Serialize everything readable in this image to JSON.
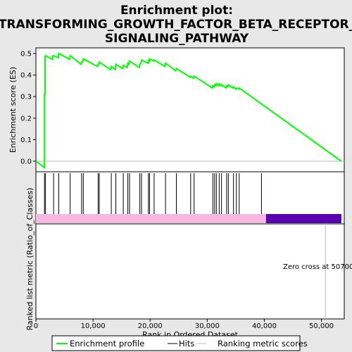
{
  "title_lines": [
    "Enrichment plot:",
    "TRANSFORMING_GROWTH_FACTOR_BETA_RECEPTOR_",
    "SIGNALING_PATHWAY"
  ],
  "colors": {
    "background": "#e8e8e8",
    "profile": "#00ff00",
    "hits": "#000000",
    "positive_band": "#f5b8e0",
    "negative_band": "#5a00b0",
    "zero_line": "#bbbbbb"
  },
  "chart_data": {
    "type": "line",
    "ylabel": "Enrichment score (ES)",
    "xlabel": "Rank in Ordered Dataset",
    "ylabel_bottom": "Ranked list metric (Ratio_of_Classes)",
    "xlim": [
      0,
      54000
    ],
    "ylim": [
      -0.05,
      0.52
    ],
    "yticks": [
      0.0,
      0.1,
      0.2,
      0.3,
      0.4,
      0.5
    ],
    "ytick_labels": [
      "0.0",
      "0.1",
      "0.2",
      "0.3",
      "0.4",
      "0.5"
    ],
    "xticks": [
      0,
      10000,
      20000,
      30000,
      40000,
      50000
    ],
    "xtick_labels": [
      "0",
      "10,000",
      "20,000",
      "30,000",
      "40,000",
      "50,000"
    ],
    "zero_cross_label": "Zero cross at 50700",
    "zero_cross_x": 50700,
    "dataset_end": 53500,
    "positive_end": 40300,
    "legend": [
      "Enrichment profile",
      "Hits",
      "Ranking metric scores"
    ],
    "hits": [
      1500,
      1650,
      3100,
      4000,
      6000,
      8000,
      8300,
      10900,
      11100,
      13200,
      14000,
      15300,
      16100,
      16400,
      18200,
      18500,
      19700,
      19900,
      20700,
      22700,
      24600,
      27100,
      27700,
      31000,
      31300,
      31600,
      32100,
      32500,
      33400,
      33700,
      34600,
      35100,
      35600,
      39500
    ],
    "es_profile": {
      "x": [
        0,
        1500,
        1500,
        1600,
        1600,
        1700,
        2900,
        3000,
        3100,
        3900,
        4000,
        5900,
        6000,
        7900,
        8000,
        8200,
        8300,
        10800,
        10900,
        11000,
        11100,
        13100,
        13200,
        13900,
        14000,
        15200,
        15300,
        16000,
        16100,
        16300,
        16400,
        18100,
        18200,
        18400,
        18500,
        19600,
        19700,
        19800,
        19900,
        20600,
        20700,
        22600,
        22700,
        24500,
        24600,
        27000,
        27100,
        27600,
        27700,
        30900,
        31000,
        31200,
        31300,
        31500,
        31600,
        32000,
        32100,
        32400,
        32500,
        33300,
        33400,
        33600,
        33700,
        34500,
        34600,
        35000,
        35100,
        35500,
        35600,
        53500
      ],
      "y": [
        0.0,
        -0.03,
        0.31,
        0.31,
        0.485,
        0.49,
        0.473,
        0.49,
        0.49,
        0.48,
        0.5,
        0.473,
        0.49,
        0.45,
        0.46,
        0.46,
        0.475,
        0.44,
        0.45,
        0.45,
        0.46,
        0.425,
        0.44,
        0.425,
        0.45,
        0.43,
        0.445,
        0.435,
        0.455,
        0.45,
        0.465,
        0.435,
        0.45,
        0.455,
        0.47,
        0.455,
        0.465,
        0.46,
        0.475,
        0.465,
        0.47,
        0.44,
        0.455,
        0.42,
        0.43,
        0.39,
        0.395,
        0.385,
        0.395,
        0.34,
        0.35,
        0.345,
        0.355,
        0.35,
        0.36,
        0.35,
        0.36,
        0.35,
        0.355,
        0.34,
        0.35,
        0.345,
        0.355,
        0.34,
        0.345,
        0.335,
        0.34,
        0.335,
        0.34,
        0.0
      ]
    }
  }
}
